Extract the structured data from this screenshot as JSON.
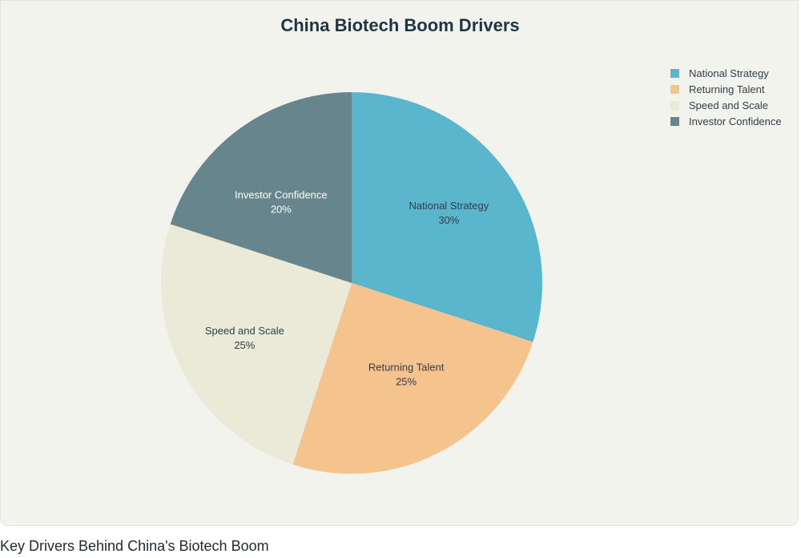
{
  "chart_data": {
    "type": "pie",
    "title": "China Biotech Boom Drivers",
    "categories": [
      "National Strategy",
      "Returning Talent",
      "Speed and Scale",
      "Investor Confidence"
    ],
    "values": [
      30,
      25,
      25,
      20
    ],
    "value_labels": [
      "30%",
      "25%",
      "25%",
      "20%"
    ],
    "colors": [
      "#5ab6cc",
      "#f5c38e",
      "#ebe9d8",
      "#66858c"
    ],
    "legend_position": "top-right"
  },
  "caption": "Key Drivers Behind China's Biotech Boom"
}
